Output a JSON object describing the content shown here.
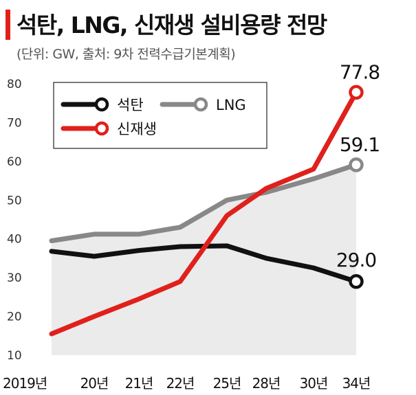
{
  "header": {
    "title": "석탄, LNG, 신재생 설비용량 전망",
    "source": "(단위: GW, 출처: 9차 전력수급기본계획)",
    "accent_color": "#e0201b"
  },
  "chart_data": {
    "type": "line",
    "title": "석탄, LNG, 신재생 설비용량 전망",
    "unit": "GW",
    "categories": [
      "2019년",
      "20년",
      "21년",
      "22년",
      "25년",
      "28년",
      "30년",
      "34년"
    ],
    "yticks": [
      "10",
      "20",
      "30",
      "40",
      "50",
      "60",
      "70",
      "80"
    ],
    "ylim": [
      10,
      85
    ],
    "grid": false,
    "legend_position": "top-left",
    "series": [
      {
        "name": "석탄",
        "color": "#111111",
        "values": [
          36.8,
          35.5,
          37,
          38,
          38.2,
          35,
          32.5,
          29.0
        ],
        "end_label": "29.0"
      },
      {
        "name": "LNG",
        "color": "#888888",
        "values": [
          39.5,
          41.2,
          41.2,
          43,
          50,
          52,
          55.5,
          59.1
        ],
        "end_label": "59.1",
        "area_fill": "#ebebeb"
      },
      {
        "name": "신재생",
        "color": "#e0201b",
        "values": [
          15.5,
          20,
          24.5,
          29,
          46,
          53,
          58,
          77.8
        ],
        "end_label": "77.8"
      }
    ]
  }
}
